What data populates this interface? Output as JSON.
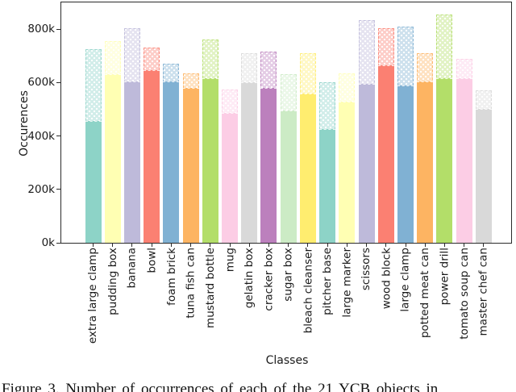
{
  "figure": {
    "caption_visible_text": "Figure 3. Number of occurrences of each of the 21 YCB objects in",
    "xlabel": "Classes",
    "ylabel": "Occurences"
  },
  "chart_data": {
    "type": "bar",
    "title": "",
    "xlabel": "Classes",
    "ylabel": "Occurences",
    "categories": [
      "extra large clamp",
      "pudding box",
      "banana",
      "bowl",
      "foam brick",
      "tuna fish can",
      "mustard bottle",
      "mug",
      "gelatin box",
      "cracker box",
      "sugar box",
      "bleach cleanser",
      "pitcher base",
      "large marker",
      "scissors",
      "wood block",
      "large clamp",
      "potted meat can",
      "power drill",
      "tomato soup can",
      "master chef can"
    ],
    "series": [
      {
        "name": "overlay_light_bars",
        "style": "translucent with white dot hatch, dashed edge",
        "values_k": [
          725,
          755,
          805,
          730,
          670,
          635,
          760,
          575,
          710,
          715,
          630,
          710,
          600,
          635,
          835,
          805,
          810,
          710,
          855,
          690,
          570
        ]
      },
      {
        "name": "solid_bars",
        "style": "opaque",
        "values_k": [
          455,
          630,
          605,
          645,
          605,
          580,
          615,
          485,
          600,
          580,
          495,
          560,
          425,
          530,
          595,
          665,
          590,
          605,
          615,
          615,
          500
        ]
      }
    ],
    "bar_colors": [
      "#8dd3c7",
      "#ffffb3",
      "#bebada",
      "#fb8072",
      "#80b1d3",
      "#fdb462",
      "#b3de69",
      "#fccde5",
      "#d9d9d9",
      "#bc80bd",
      "#ccebc5",
      "#ffed6f",
      "#8dd3c7",
      "#ffffb3",
      "#bebada",
      "#fb8072",
      "#80b1d3",
      "#fdb462",
      "#b3de69",
      "#fccde5",
      "#d9d9d9"
    ],
    "light_bar_alpha": 0.4,
    "ylim_k": [
      0,
      900
    ],
    "yticks": [
      {
        "label": "0k",
        "value_k": 0
      },
      {
        "label": "200k",
        "value_k": 200
      },
      {
        "label": "400k",
        "value_k": 400
      },
      {
        "label": "600k",
        "value_k": 600
      },
      {
        "label": "800k",
        "value_k": 800
      }
    ],
    "grid": false,
    "legend": "none"
  }
}
